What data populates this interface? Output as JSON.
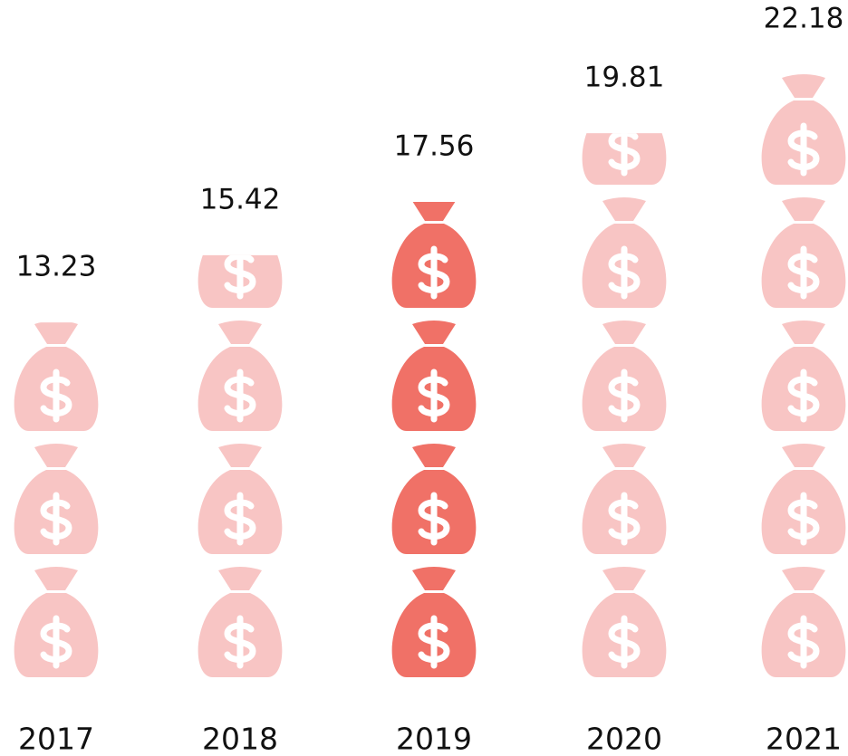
{
  "chart_data": {
    "type": "pictogram",
    "categories": [
      "2017",
      "2018",
      "2019",
      "2020",
      "2021"
    ],
    "values": [
      13.23,
      15.42,
      17.56,
      19.81,
      22.18
    ],
    "colors": [
      "#f8c5c4",
      "#f8c5c4",
      "#f07167",
      "#f8c5c4",
      "#f8c5c4"
    ]
  }
}
